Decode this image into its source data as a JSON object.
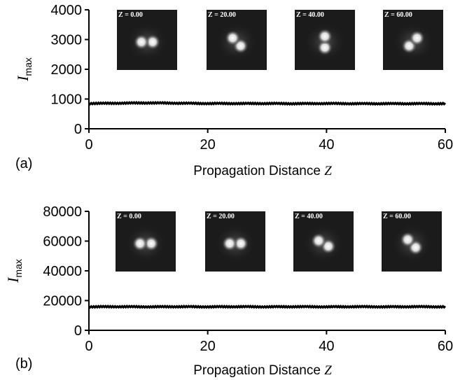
{
  "chart_data": [
    {
      "type": "line",
      "panel_label": "(a)",
      "xlabel": "Propagation Distance",
      "xlabel_var": "Z",
      "ylabel": "I",
      "ylabel_sub": "max",
      "xlim": [
        0,
        60
      ],
      "ylim": [
        0,
        4000
      ],
      "xticks": [
        0,
        20,
        40,
        60
      ],
      "yticks": [
        0,
        1000,
        2000,
        3000,
        4000
      ],
      "series": [
        {
          "x": [
            0,
            5,
            10,
            15,
            20,
            25,
            30,
            35,
            40,
            45,
            50,
            55,
            60
          ],
          "y": [
            850,
            860,
            870,
            860,
            850,
            850,
            850,
            845,
            850,
            845,
            845,
            845,
            845
          ]
        }
      ],
      "insets": [
        {
          "label": "Z = 0.00",
          "angle": 0
        },
        {
          "label": "Z = 20.00",
          "angle": 45
        },
        {
          "label": "Z = 40.00",
          "angle": 90
        },
        {
          "label": "Z = 60.00",
          "angle": 135
        }
      ]
    },
    {
      "type": "line",
      "panel_label": "(b)",
      "xlabel": "Propagation Distance",
      "xlabel_var": "Z",
      "ylabel": "I",
      "ylabel_sub": "max",
      "xlim": [
        0,
        60
      ],
      "ylim": [
        0,
        80000
      ],
      "xticks": [
        0,
        20,
        40,
        60
      ],
      "yticks": [
        0,
        20000,
        40000,
        60000,
        80000
      ],
      "series": [
        {
          "x": [
            0,
            5,
            10,
            15,
            20,
            25,
            30,
            35,
            40,
            45,
            50,
            55,
            60
          ],
          "y": [
            15800,
            15900,
            15800,
            15900,
            15800,
            15900,
            15800,
            15900,
            15800,
            15900,
            15800,
            15900,
            15800
          ]
        }
      ],
      "insets": [
        {
          "label": "Z = 0.00",
          "angle": 0
        },
        {
          "label": "Z = 20.00",
          "angle": 0
        },
        {
          "label": "Z = 40.00",
          "angle": 30
        },
        {
          "label": "Z = 60.00",
          "angle": 45
        }
      ]
    }
  ]
}
